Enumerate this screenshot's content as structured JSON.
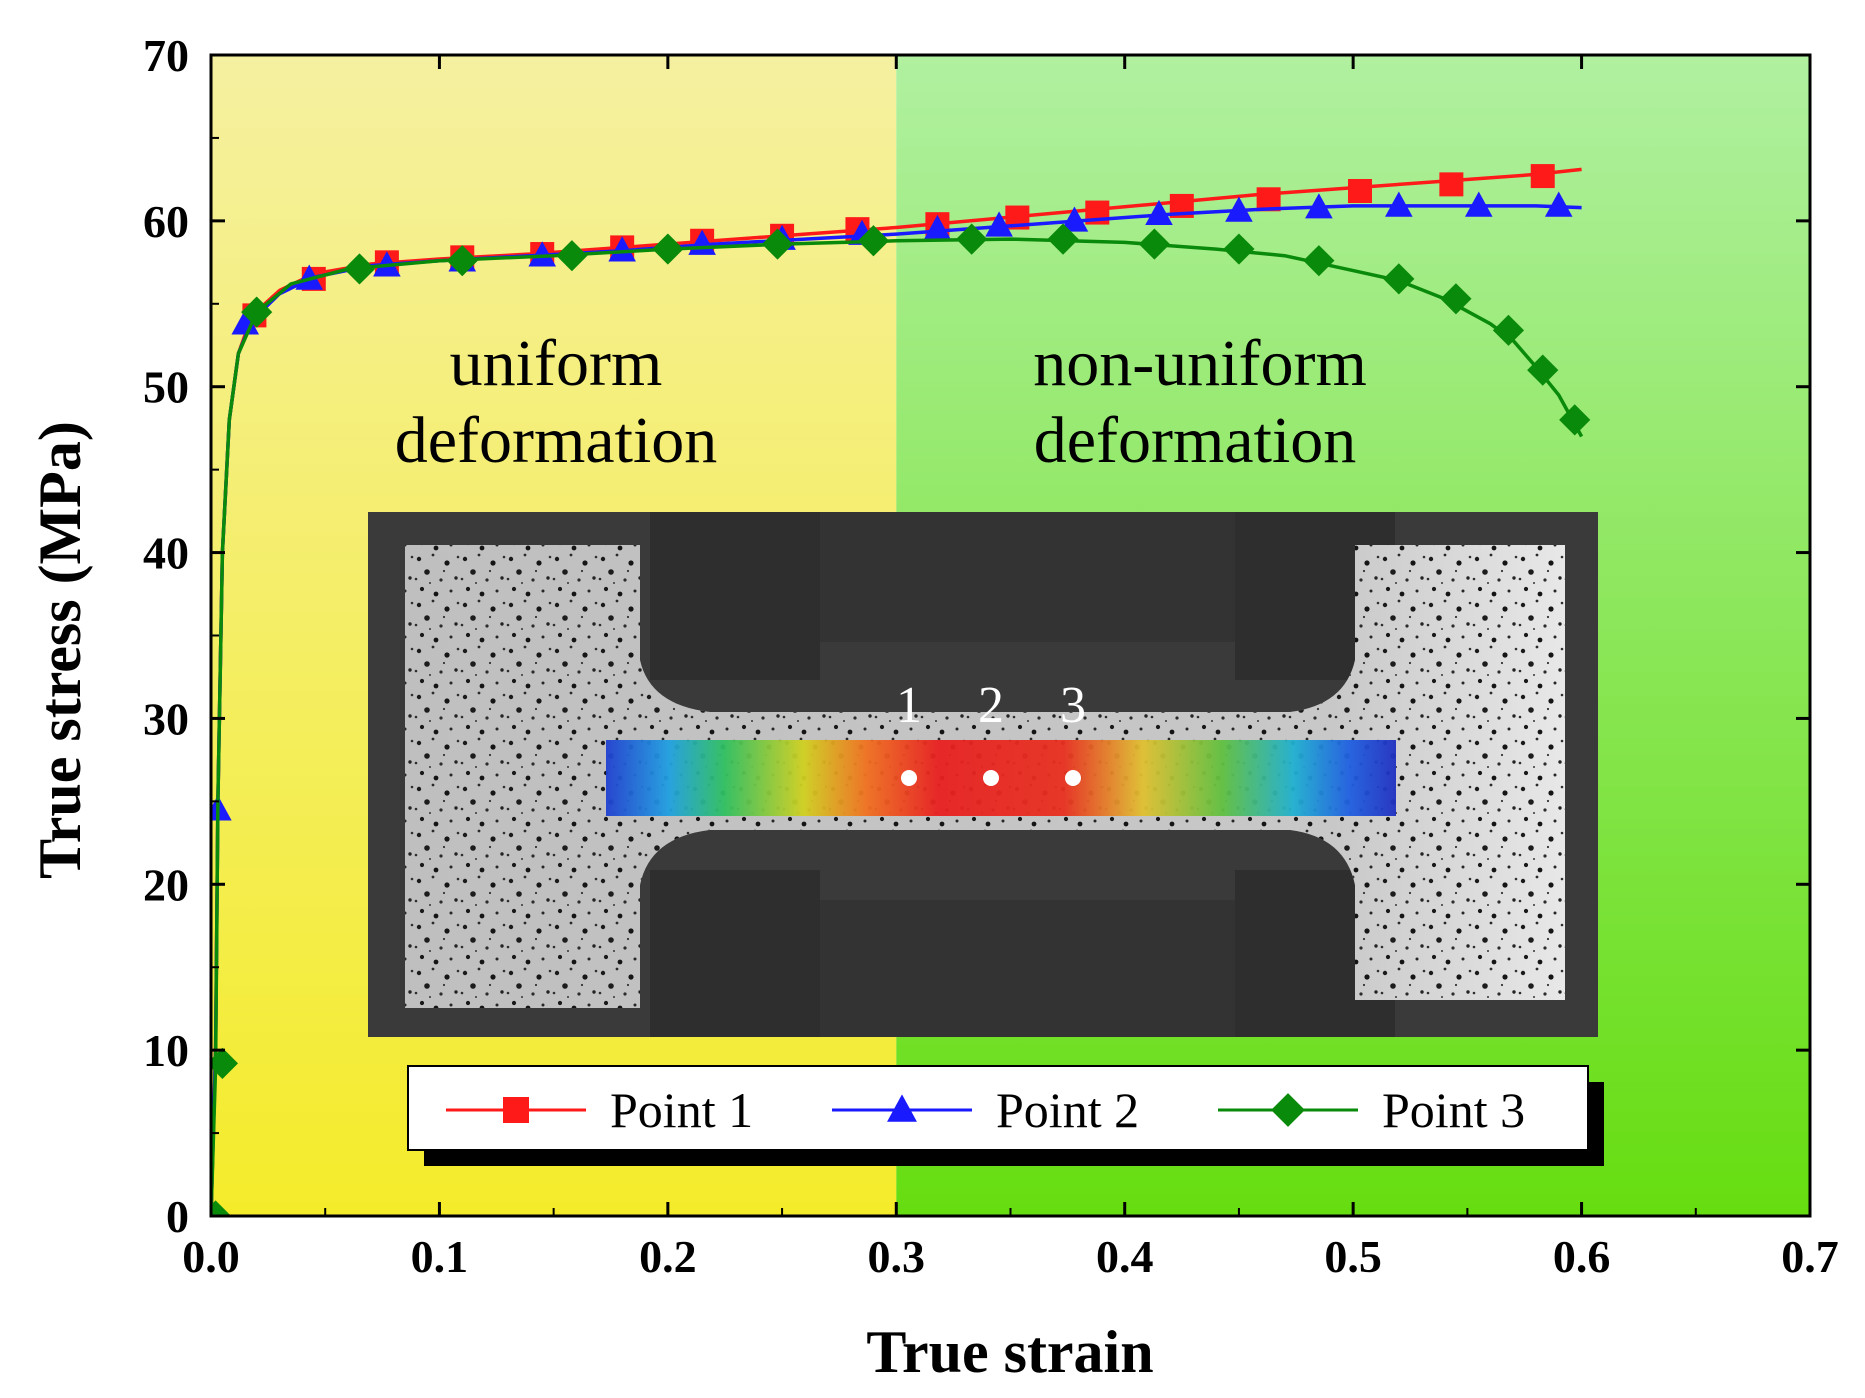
{
  "chart_data": {
    "type": "line",
    "xlabel": "True strain",
    "ylabel": "True stress (MPa)",
    "xlim": [
      0.0,
      0.7
    ],
    "ylim": [
      0,
      70
    ],
    "x_ticks": [
      "0.0",
      "0.1",
      "0.2",
      "0.3",
      "0.4",
      "0.5",
      "0.6",
      "0.7"
    ],
    "y_ticks": [
      "0",
      "10",
      "20",
      "30",
      "40",
      "50",
      "60",
      "70"
    ],
    "grid": false,
    "regions": [
      {
        "name": "uniform",
        "x_range": [
          0.0,
          0.3
        ],
        "label_lines": [
          "uniform",
          "deformation"
        ],
        "color_top": "#f5f0a0",
        "color_bottom": "#f4ec2a"
      },
      {
        "name": "non-uniform",
        "x_range": [
          0.3,
          0.7
        ],
        "label_lines": [
          "non-uniform",
          "deformation"
        ],
        "color_top": "#b0f0a0",
        "color_bottom": "#66dd10"
      }
    ],
    "series": [
      {
        "name": "Point 1",
        "color": "#ff1a1a",
        "marker": "square",
        "x": [
          0.0,
          0.002,
          0.003,
          0.005,
          0.008,
          0.012,
          0.018,
          0.03,
          0.045,
          0.07,
          0.1,
          0.14,
          0.18,
          0.22,
          0.26,
          0.3,
          0.34,
          0.38,
          0.42,
          0.46,
          0.5,
          0.54,
          0.58,
          0.6
        ],
        "y": [
          0,
          10,
          25,
          40,
          48,
          52,
          54.3,
          55.8,
          56.8,
          57.4,
          57.7,
          58.0,
          58.4,
          58.8,
          59.2,
          59.6,
          60.1,
          60.6,
          61.1,
          61.6,
          62.0,
          62.4,
          62.8,
          63.1
        ],
        "marker_x": [
          0.019,
          0.045,
          0.077,
          0.11,
          0.145,
          0.18,
          0.215,
          0.25,
          0.283,
          0.318,
          0.353,
          0.388,
          0.425,
          0.463,
          0.503,
          0.543,
          0.583
        ],
        "marker_y": [
          54.3,
          56.5,
          57.5,
          57.8,
          58.0,
          58.4,
          58.8,
          59.1,
          59.5,
          59.8,
          60.2,
          60.5,
          60.9,
          61.3,
          61.8,
          62.2,
          62.7
        ]
      },
      {
        "name": "Point 2",
        "color": "#1a1aff",
        "marker": "triangle",
        "x": [
          0.0,
          0.002,
          0.003,
          0.005,
          0.008,
          0.012,
          0.018,
          0.03,
          0.045,
          0.07,
          0.1,
          0.14,
          0.18,
          0.22,
          0.26,
          0.3,
          0.34,
          0.38,
          0.42,
          0.46,
          0.5,
          0.54,
          0.58,
          0.6
        ],
        "y": [
          0,
          10,
          25,
          40,
          48,
          52,
          54.0,
          55.6,
          56.6,
          57.3,
          57.6,
          57.9,
          58.2,
          58.6,
          58.9,
          59.2,
          59.6,
          60.0,
          60.4,
          60.7,
          60.9,
          60.9,
          60.9,
          60.8
        ],
        "marker_x": [
          0.003,
          0.015,
          0.043,
          0.077,
          0.11,
          0.145,
          0.18,
          0.215,
          0.25,
          0.285,
          0.318,
          0.345,
          0.378,
          0.415,
          0.45,
          0.485,
          0.52,
          0.555,
          0.59
        ],
        "marker_y": [
          24.5,
          53.8,
          56.5,
          57.3,
          57.6,
          57.9,
          58.2,
          58.6,
          58.9,
          59.2,
          59.5,
          59.7,
          60.0,
          60.4,
          60.6,
          60.8,
          60.9,
          60.9,
          60.9
        ]
      },
      {
        "name": "Point 3",
        "color": "#0a8a0a",
        "marker": "diamond",
        "x": [
          0.0,
          0.002,
          0.003,
          0.005,
          0.008,
          0.012,
          0.02,
          0.035,
          0.06,
          0.1,
          0.15,
          0.2,
          0.25,
          0.3,
          0.35,
          0.4,
          0.44,
          0.47,
          0.5,
          0.52,
          0.54,
          0.56,
          0.57,
          0.58,
          0.59,
          0.6
        ],
        "y": [
          0,
          9,
          25,
          40,
          48,
          52,
          54.5,
          56.2,
          57.1,
          57.6,
          57.9,
          58.3,
          58.6,
          58.8,
          58.9,
          58.7,
          58.3,
          57.9,
          57.0,
          56.4,
          55.3,
          53.8,
          52.8,
          51.2,
          49.5,
          47.0
        ],
        "marker_x": [
          0.002,
          0.005,
          0.02,
          0.065,
          0.11,
          0.158,
          0.2,
          0.248,
          0.29,
          0.333,
          0.373,
          0.413,
          0.45,
          0.485,
          0.52,
          0.545,
          0.568,
          0.583,
          0.597
        ],
        "marker_y": [
          0,
          9.2,
          54.5,
          57.1,
          57.6,
          57.9,
          58.3,
          58.6,
          58.8,
          58.9,
          58.9,
          58.6,
          58.3,
          57.6,
          56.5,
          55.3,
          53.4,
          51.0,
          48.0
        ]
      }
    ],
    "legend": {
      "position": "bottom-center",
      "entries": [
        "Point 1",
        "Point 2",
        "Point 3"
      ]
    },
    "inset": {
      "description_labels": [
        "1",
        "2",
        "3"
      ]
    }
  }
}
